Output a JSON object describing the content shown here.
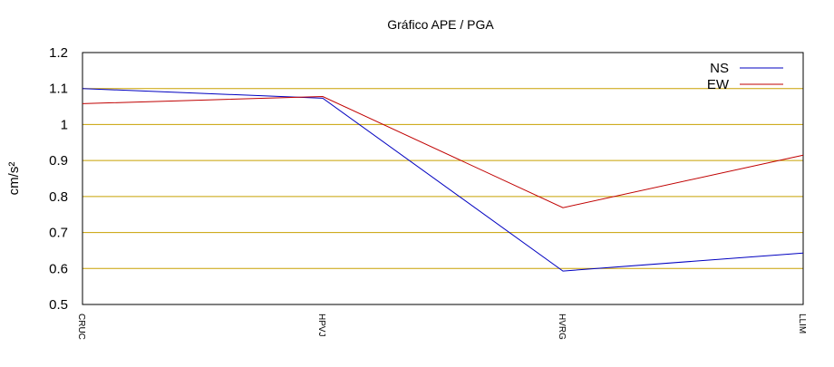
{
  "chart_data": {
    "type": "line",
    "title": "Gráfico  APE / PGA",
    "ylabel": "cm/s²",
    "xlabel": "",
    "categories": [
      "CRUC",
      "HPVJ",
      "HVRG",
      "LLIM"
    ],
    "ylim": [
      0.5,
      1.2
    ],
    "yticks": [
      0.5,
      0.6,
      0.7,
      0.8,
      0.9,
      1,
      1.1,
      1.2
    ],
    "ytick_labels": [
      "0.5",
      "0.6",
      "0.7",
      "0.8",
      "0.9",
      "1",
      "1.1",
      "1.2"
    ],
    "grid": true,
    "grid_color": "#c8a000",
    "legend_position": "top-right",
    "series": [
      {
        "name": "NS",
        "color": "#0000c0",
        "values": [
          1.1,
          1.073,
          0.593,
          0.643
        ]
      },
      {
        "name": "EW",
        "color": "#c00000",
        "values": [
          1.058,
          1.078,
          0.769,
          0.915
        ]
      }
    ]
  }
}
